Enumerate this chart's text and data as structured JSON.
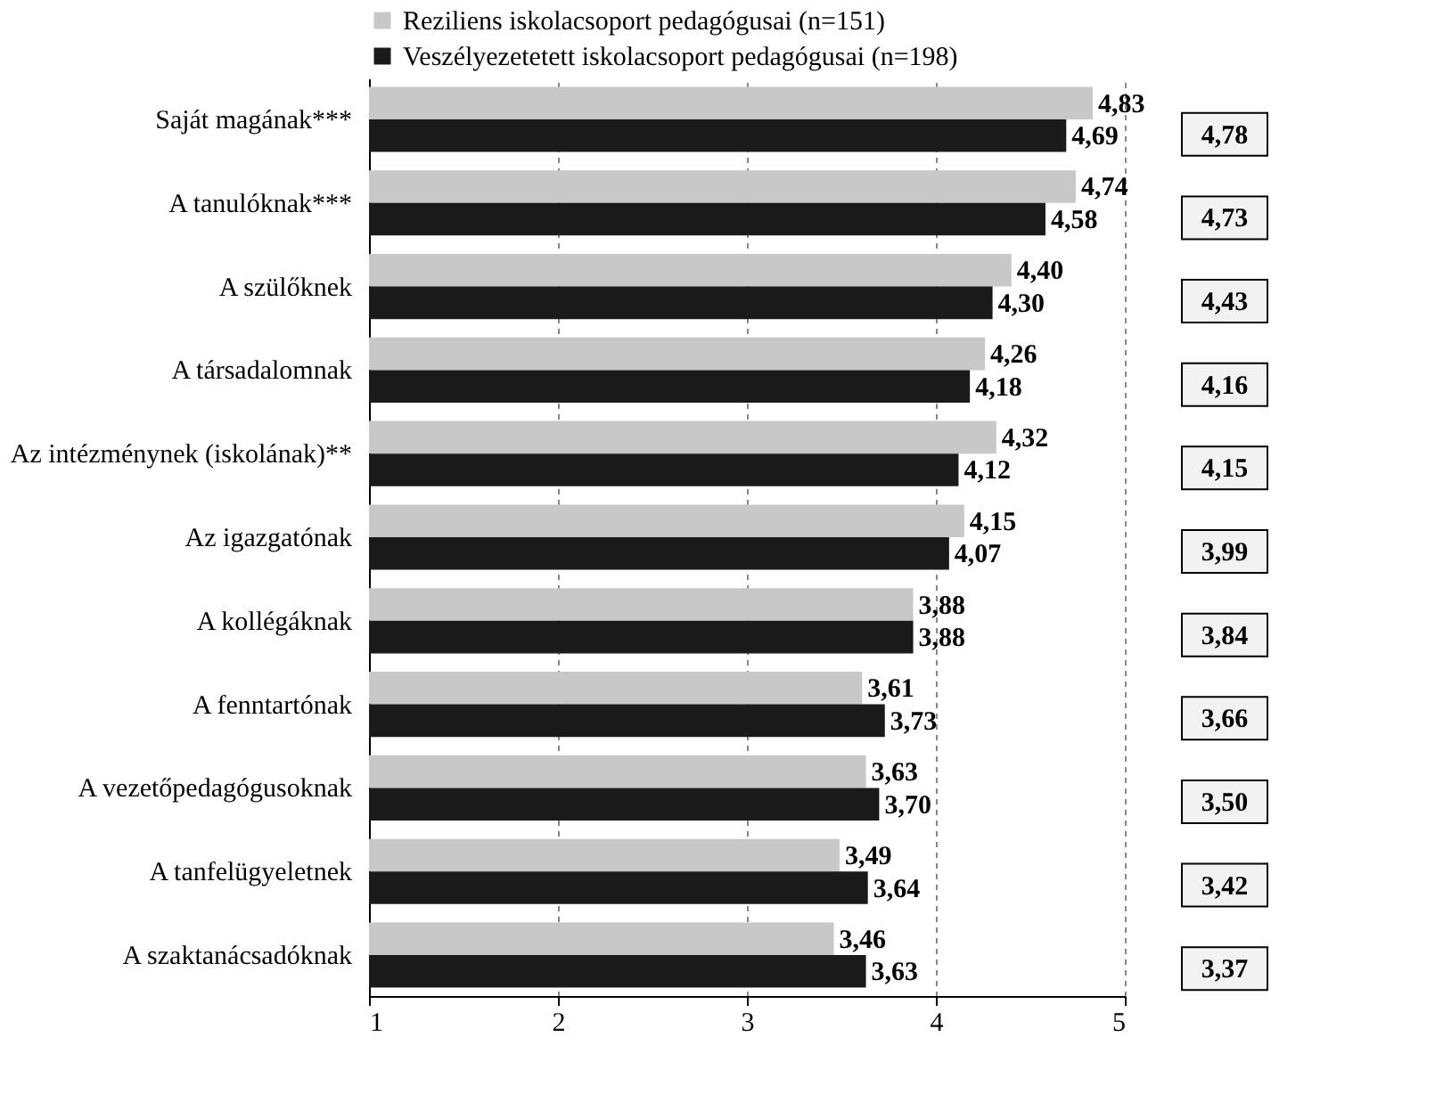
{
  "chart_data": {
    "type": "bar",
    "orientation": "horizontal",
    "categories": [
      "Saját magának***",
      "A tanulóknak***",
      "A szülőknek",
      "A társadalomnak",
      "Az intézménynek (iskolának)**",
      "Az igazgatónak",
      "A kollégáknak",
      "A fenntartónak",
      "A vezetőpedagógusoknak",
      "A tanfelügyeletnek",
      "A szaktanácsadóknak"
    ],
    "series": [
      {
        "name": "Reziliens iskolacsoport pedagógusai (n=151)",
        "color": "#c8c8c8",
        "values": [
          4.83,
          4.74,
          4.4,
          4.26,
          4.32,
          4.15,
          3.88,
          3.61,
          3.63,
          3.49,
          3.46
        ],
        "value_labels": [
          "4,83",
          "4,74",
          "4,40",
          "4,26",
          "4,32",
          "4,15",
          "3,88",
          "3,61",
          "3,63",
          "3,49",
          "3,46"
        ]
      },
      {
        "name": "Veszélyezetetett iskolacsoport pedagógusai (n=198)",
        "color": "#1a1a1a",
        "values": [
          4.69,
          4.58,
          4.3,
          4.18,
          4.12,
          4.07,
          3.88,
          3.73,
          3.7,
          3.64,
          3.63
        ],
        "value_labels": [
          "4,69",
          "4,58",
          "4,30",
          "4,18",
          "4,12",
          "4,07",
          "3,88",
          "3,73",
          "3,70",
          "3,64",
          "3,63"
        ]
      }
    ],
    "xlim": [
      1,
      5
    ],
    "xticks": [
      1,
      2,
      3,
      4,
      5
    ],
    "grid": "x",
    "legend": "top",
    "annotations": [
      "4,78",
      "4,73",
      "4,43",
      "4,16",
      "4,15",
      "3,99",
      "3,84",
      "3,66",
      "3,50",
      "3,42",
      "3,37"
    ]
  }
}
